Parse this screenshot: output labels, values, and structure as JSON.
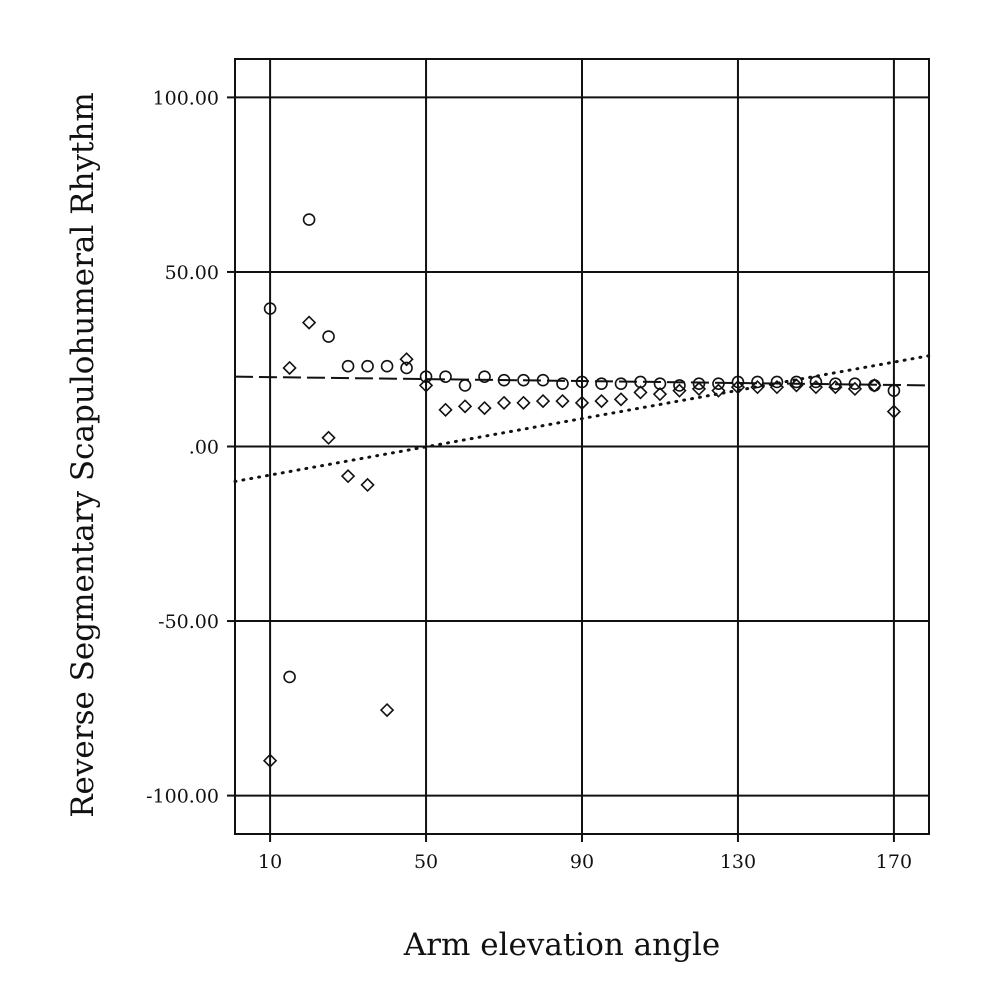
{
  "chart_data": {
    "type": "scatter",
    "xlabel": "Arm elevation angle",
    "ylabel": "Reverse Segmentary Scapulohumeral Rhythm",
    "xlim": [
      1,
      179
    ],
    "ylim": [
      -111,
      111
    ],
    "x_ticks": [
      10,
      50,
      90,
      130,
      170
    ],
    "x_tick_labels": [
      "10",
      "50",
      "90",
      "130",
      "170"
    ],
    "y_ticks": [
      100,
      50,
      0,
      -50,
      -100
    ],
    "y_tick_labels": [
      "100.00",
      "50.00",
      ".00",
      "-50.00",
      "-100.00"
    ],
    "grid": true,
    "series": [
      {
        "marker": "circle",
        "points": [
          [
            10,
            39.5
          ],
          [
            15,
            -66
          ],
          [
            20,
            65
          ],
          [
            25,
            31.5
          ],
          [
            30,
            23
          ],
          [
            35,
            23
          ],
          [
            40,
            23
          ],
          [
            45,
            22.5
          ],
          [
            50,
            20
          ],
          [
            55,
            20
          ],
          [
            60,
            17.5
          ],
          [
            65,
            20
          ],
          [
            70,
            19
          ],
          [
            75,
            19
          ],
          [
            80,
            19
          ],
          [
            85,
            18
          ],
          [
            90,
            18.5
          ],
          [
            95,
            18
          ],
          [
            100,
            18
          ],
          [
            105,
            18.5
          ],
          [
            110,
            18
          ],
          [
            115,
            17.5
          ],
          [
            120,
            18
          ],
          [
            125,
            18
          ],
          [
            130,
            18.5
          ],
          [
            135,
            18.5
          ],
          [
            140,
            18.5
          ],
          [
            145,
            18.5
          ],
          [
            150,
            18.5
          ],
          [
            155,
            18
          ],
          [
            160,
            18
          ],
          [
            165,
            17.5
          ],
          [
            170,
            16
          ]
        ]
      },
      {
        "marker": "diamond",
        "points": [
          [
            10,
            -90
          ],
          [
            15,
            22.5
          ],
          [
            20,
            35.5
          ],
          [
            25,
            2.5
          ],
          [
            30,
            -8.5
          ],
          [
            35,
            -11
          ],
          [
            40,
            -75.5
          ],
          [
            45,
            25
          ],
          [
            50,
            17.5
          ],
          [
            55,
            10.5
          ],
          [
            60,
            11.5
          ],
          [
            65,
            11
          ],
          [
            70,
            12.5
          ],
          [
            75,
            12.5
          ],
          [
            80,
            13
          ],
          [
            85,
            13
          ],
          [
            90,
            12.5
          ],
          [
            95,
            13
          ],
          [
            100,
            13.5
          ],
          [
            105,
            15.5
          ],
          [
            110,
            15
          ],
          [
            115,
            16
          ],
          [
            120,
            16.5
          ],
          [
            125,
            16
          ],
          [
            130,
            17
          ],
          [
            135,
            17
          ],
          [
            140,
            17
          ],
          [
            145,
            17.5
          ],
          [
            150,
            17
          ],
          [
            155,
            17
          ],
          [
            160,
            16.5
          ],
          [
            165,
            17.5
          ],
          [
            170,
            10
          ]
        ]
      }
    ],
    "reference_lines": [
      {
        "style": "dashed",
        "from": [
          1,
          20
        ],
        "to": [
          179,
          17.5
        ]
      },
      {
        "style": "dotted",
        "from": [
          1,
          -10
        ],
        "to": [
          179,
          26
        ]
      }
    ]
  }
}
